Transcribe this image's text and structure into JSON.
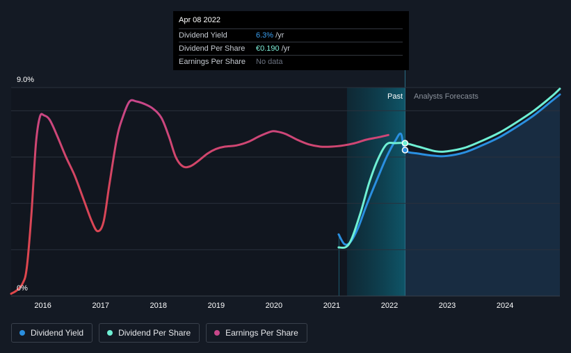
{
  "tooltip": {
    "date": "Apr 08 2022",
    "rows": [
      {
        "name": "Dividend Yield",
        "value": "6.3%",
        "unit": " /yr"
      },
      {
        "name": "Dividend Per Share",
        "value": "€0.190",
        "unit": " /yr"
      },
      {
        "name": "Earnings Per Share",
        "value": "No data",
        "unit": ""
      }
    ]
  },
  "legend": [
    {
      "label": "Dividend Yield",
      "color": "#2a8fe0"
    },
    {
      "label": "Dividend Per Share",
      "color": "#6ff0d4"
    },
    {
      "label": "Earnings Per Share",
      "color": "#c8478a"
    }
  ],
  "chart_data": {
    "type": "line",
    "title": "",
    "xlabel": "",
    "ylabel": "",
    "y_tick_labels": [
      "9.0%",
      "0%"
    ],
    "ylim": [
      0,
      9
    ],
    "xlim": [
      2015.45,
      2024.95
    ],
    "x_ticks": [
      2016,
      2017,
      2018,
      2019,
      2020,
      2021,
      2022,
      2023,
      2024
    ],
    "regions": {
      "past_label": "Past",
      "forecast_label": "Analysts Forecasts",
      "forecast_start": 2022.27
    },
    "grid": true,
    "series": [
      {
        "name": "Dividend Yield",
        "color": "#2a8fe0",
        "points": [
          [
            2021.12,
            2.66
          ],
          [
            2021.22,
            2.24
          ],
          [
            2021.32,
            2.32
          ],
          [
            2021.45,
            2.9
          ],
          [
            2021.6,
            3.9
          ],
          [
            2021.78,
            5.0
          ],
          [
            2021.95,
            6.0
          ],
          [
            2022.1,
            6.7
          ],
          [
            2022.2,
            7.0
          ],
          [
            2022.27,
            6.3
          ],
          [
            2022.5,
            6.15
          ],
          [
            2022.8,
            6.05
          ],
          [
            2023.0,
            6.05
          ],
          [
            2023.3,
            6.2
          ],
          [
            2023.6,
            6.5
          ],
          [
            2023.9,
            6.85
          ],
          [
            2024.2,
            7.3
          ],
          [
            2024.5,
            7.8
          ],
          [
            2024.8,
            8.4
          ],
          [
            2024.95,
            8.7
          ]
        ]
      },
      {
        "name": "Dividend Per Share",
        "color": "#6ff0d4",
        "points": [
          [
            2021.12,
            2.1
          ],
          [
            2021.25,
            2.12
          ],
          [
            2021.35,
            2.5
          ],
          [
            2021.5,
            3.6
          ],
          [
            2021.65,
            4.9
          ],
          [
            2021.8,
            5.9
          ],
          [
            2021.95,
            6.55
          ],
          [
            2022.1,
            6.6
          ],
          [
            2022.27,
            6.6
          ],
          [
            2022.5,
            6.45
          ],
          [
            2022.8,
            6.25
          ],
          [
            2023.0,
            6.25
          ],
          [
            2023.3,
            6.4
          ],
          [
            2023.6,
            6.7
          ],
          [
            2023.9,
            7.05
          ],
          [
            2024.2,
            7.5
          ],
          [
            2024.5,
            8.0
          ],
          [
            2024.8,
            8.6
          ],
          [
            2024.95,
            8.95
          ]
        ]
      },
      {
        "name": "Earnings Per Share",
        "color": "#c8478a",
        "color_low": "#e0474a",
        "points": [
          [
            2015.45,
            0.1
          ],
          [
            2015.55,
            0.25
          ],
          [
            2015.65,
            0.55
          ],
          [
            2015.72,
            1.2
          ],
          [
            2015.8,
            3.5
          ],
          [
            2015.88,
            6.6
          ],
          [
            2015.95,
            7.75
          ],
          [
            2016.02,
            7.8
          ],
          [
            2016.12,
            7.6
          ],
          [
            2016.25,
            6.9
          ],
          [
            2016.4,
            6.0
          ],
          [
            2016.55,
            5.2
          ],
          [
            2016.7,
            4.2
          ],
          [
            2016.85,
            3.2
          ],
          [
            2016.95,
            2.8
          ],
          [
            2017.05,
            3.2
          ],
          [
            2017.15,
            4.8
          ],
          [
            2017.28,
            6.8
          ],
          [
            2017.38,
            7.7
          ],
          [
            2017.5,
            8.4
          ],
          [
            2017.62,
            8.4
          ],
          [
            2017.75,
            8.3
          ],
          [
            2017.9,
            8.1
          ],
          [
            2018.05,
            7.7
          ],
          [
            2018.18,
            6.9
          ],
          [
            2018.3,
            6.0
          ],
          [
            2018.42,
            5.6
          ],
          [
            2018.55,
            5.6
          ],
          [
            2018.7,
            5.85
          ],
          [
            2018.85,
            6.15
          ],
          [
            2019.0,
            6.35
          ],
          [
            2019.15,
            6.45
          ],
          [
            2019.35,
            6.5
          ],
          [
            2019.55,
            6.65
          ],
          [
            2019.75,
            6.9
          ],
          [
            2019.95,
            7.1
          ],
          [
            2020.05,
            7.1
          ],
          [
            2020.2,
            7.0
          ],
          [
            2020.4,
            6.75
          ],
          [
            2020.6,
            6.55
          ],
          [
            2020.8,
            6.45
          ],
          [
            2021.0,
            6.45
          ],
          [
            2021.2,
            6.5
          ],
          [
            2021.4,
            6.6
          ],
          [
            2021.6,
            6.75
          ],
          [
            2021.8,
            6.85
          ],
          [
            2021.98,
            6.95
          ]
        ]
      }
    ],
    "markers": [
      {
        "series": "Dividend Yield",
        "x": 2022.27,
        "y": 6.3
      },
      {
        "series": "Dividend Per Share",
        "x": 2022.27,
        "y": 6.6
      }
    ]
  }
}
